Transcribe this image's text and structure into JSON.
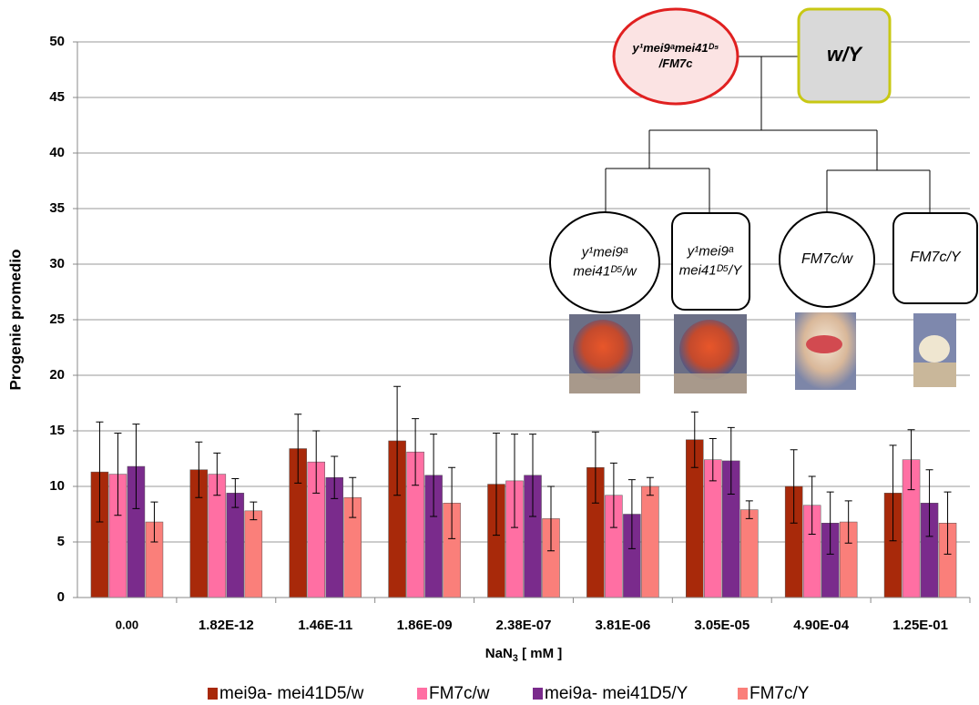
{
  "chart_data": {
    "type": "bar",
    "y_label": "Progenie promedio",
    "x_label_parts": [
      "NaN",
      "3",
      " [ mM ]"
    ],
    "categories": [
      "0.00",
      "1.82E-12",
      "1.46E-11",
      "1.86E-09",
      "2.38E-07",
      "3.81E-06",
      "3.05E-05",
      "4.90E-04",
      "1.25E-01"
    ],
    "series": [
      {
        "name": "mei9a- mei41D5/w",
        "color": "#a8290a",
        "values": [
          11.3,
          11.5,
          13.4,
          14.1,
          10.2,
          11.7,
          14.2,
          10.0,
          9.4
        ],
        "errors": [
          4.5,
          2.5,
          3.1,
          4.9,
          4.6,
          3.2,
          2.5,
          3.3,
          4.3
        ]
      },
      {
        "name": "FM7c/w",
        "color": "#ff6fa3",
        "values": [
          11.1,
          11.1,
          12.2,
          13.1,
          10.5,
          9.2,
          12.4,
          8.3,
          12.4
        ],
        "errors": [
          3.7,
          1.9,
          2.8,
          3.0,
          4.2,
          2.9,
          1.9,
          2.6,
          2.7
        ]
      },
      {
        "name": "mei9a- mei41D5/Y",
        "color": "#7a2b8c",
        "values": [
          11.8,
          9.4,
          10.8,
          11.0,
          11.0,
          7.5,
          12.3,
          6.7,
          8.5
        ],
        "errors": [
          3.8,
          1.3,
          1.9,
          3.7,
          3.7,
          3.1,
          3.0,
          2.8,
          3.0
        ]
      },
      {
        "name": "FM7c/Y",
        "color": "#fa7f7a",
        "values": [
          6.8,
          7.8,
          9.0,
          8.5,
          7.1,
          10.0,
          7.9,
          6.8,
          6.7
        ],
        "errors": [
          1.8,
          0.8,
          1.8,
          3.2,
          2.9,
          0.8,
          0.8,
          1.9,
          2.8
        ]
      }
    ],
    "ylim": [
      0,
      50
    ],
    "yticks": [
      0,
      5,
      10,
      15,
      20,
      25,
      30,
      35,
      40,
      45,
      50
    ],
    "grid": true
  },
  "diagram": {
    "parents": [
      {
        "lines": [
          "y¹mei9ᵃmei41ᴰ⁵",
          "/FM7c"
        ]
      },
      {
        "lines": [
          "w/Y"
        ]
      }
    ],
    "children": [
      {
        "lines": [
          "y¹mei9ᵃ",
          "mei41ᴰ⁵/w"
        ]
      },
      {
        "lines": [
          "y¹mei9ᵃ",
          "mei41ᴰ⁵/Y"
        ]
      },
      {
        "lines": [
          "FM7c/w"
        ]
      },
      {
        "lines": [
          "FM7c/Y"
        ]
      }
    ]
  }
}
